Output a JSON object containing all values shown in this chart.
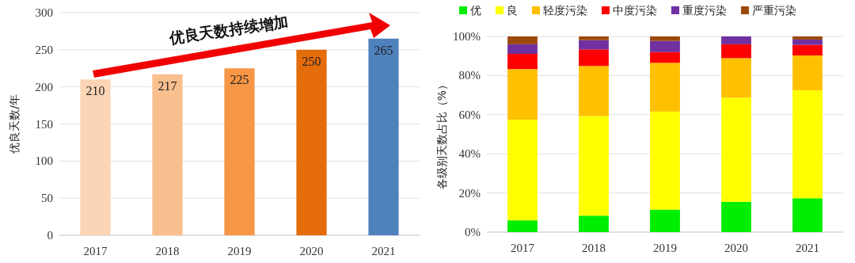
{
  "chart_data": [
    {
      "type": "bar",
      "ylabel": "优良天数/年",
      "categories": [
        "2017",
        "2018",
        "2019",
        "2020",
        "2021"
      ],
      "values": [
        210,
        217,
        225,
        250,
        265
      ],
      "colors": [
        "#fbd5b5",
        "#fabf8f",
        "#f79646",
        "#e46c0a",
        "#4f81bd"
      ],
      "ylim": [
        0,
        300
      ],
      "yticks": [
        0,
        50,
        100,
        150,
        200,
        250,
        300
      ],
      "grid": "y",
      "data_labels": true,
      "legend": false,
      "annotations": [
        "优良天数持续增加"
      ]
    },
    {
      "type": "bar",
      "stacked": true,
      "ylabel": "各级别天数占比（%）",
      "categories": [
        "2017",
        "2018",
        "2019",
        "2020",
        "2021"
      ],
      "ylim": [
        0,
        100
      ],
      "yticks": [
        {
          "value": 0,
          "label": "0%"
        },
        {
          "value": 20,
          "label": "20%"
        },
        {
          "value": 40,
          "label": "40%"
        },
        {
          "value": 60,
          "label": "60%"
        },
        {
          "value": 80,
          "label": "80%"
        },
        {
          "value": 100,
          "label": "100%"
        }
      ],
      "grid": "y",
      "legend": "top",
      "series": [
        {
          "name": "优",
          "color": "#00ee00",
          "values": [
            6.0,
            8.4,
            11.5,
            15.5,
            17.3
          ]
        },
        {
          "name": "良",
          "color": "#ffff00",
          "values": [
            51.5,
            50.9,
            50.1,
            53.2,
            55.2
          ]
        },
        {
          "name": "轻度污染",
          "color": "#ffc000",
          "values": [
            25.8,
            25.6,
            24.9,
            20.2,
            17.8
          ]
        },
        {
          "name": "中度污染",
          "color": "#ff0000",
          "values": [
            7.8,
            8.5,
            5.5,
            7.1,
            5.4
          ]
        },
        {
          "name": "重度污染",
          "color": "#7030a0",
          "values": [
            4.9,
            4.7,
            5.7,
            4.0,
            2.7
          ]
        },
        {
          "name": "严重污染",
          "color": "#9c4a0c",
          "values": [
            4.0,
            1.9,
            2.3,
            0,
            1.6
          ]
        }
      ]
    }
  ]
}
